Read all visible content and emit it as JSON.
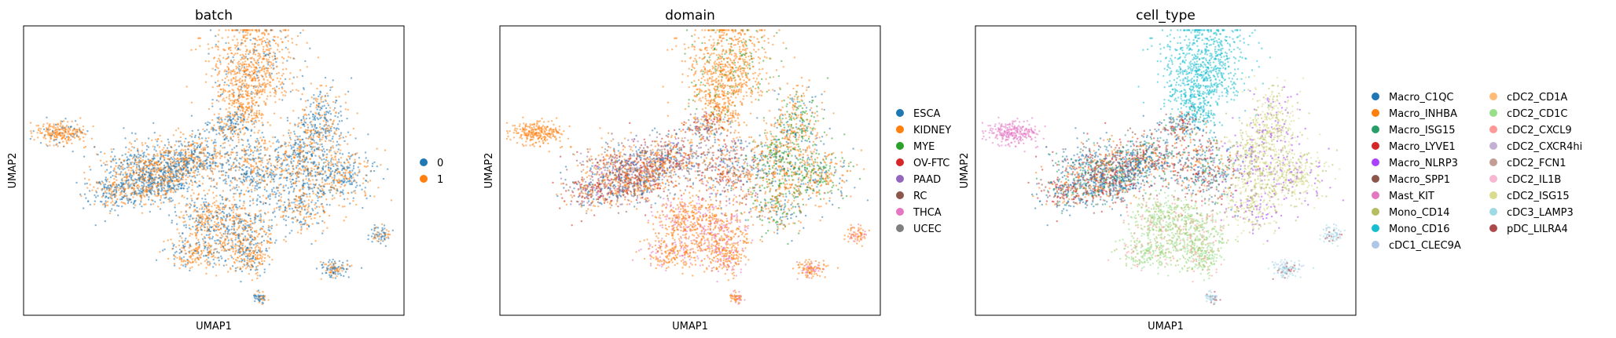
{
  "chart_data": [
    {
      "type": "scatter",
      "title": "batch",
      "xlabel": "UMAP1",
      "ylabel": "UMAP2",
      "grid": false,
      "legend_position": "right",
      "series": [
        {
          "name": "0",
          "color": "#1f77b4"
        },
        {
          "name": "1",
          "color": "#ff7f0e"
        }
      ]
    },
    {
      "type": "scatter",
      "title": "domain",
      "xlabel": "UMAP1",
      "ylabel": "UMAP2",
      "grid": false,
      "legend_position": "right",
      "series": [
        {
          "name": "ESCA",
          "color": "#1f77b4"
        },
        {
          "name": "KIDNEY",
          "color": "#ff7f0e"
        },
        {
          "name": "MYE",
          "color": "#2ca02c"
        },
        {
          "name": "OV-FTC",
          "color": "#d62728"
        },
        {
          "name": "PAAD",
          "color": "#9467bd"
        },
        {
          "name": "RC",
          "color": "#8c564b"
        },
        {
          "name": "THCA",
          "color": "#e377c2"
        },
        {
          "name": "UCEC",
          "color": "#7f7f7f"
        }
      ]
    },
    {
      "type": "scatter",
      "title": "cell_type",
      "xlabel": "UMAP1",
      "ylabel": "UMAP2",
      "grid": false,
      "legend_position": "right",
      "series": [
        {
          "name": "Macro_C1QC",
          "color": "#1f77b4"
        },
        {
          "name": "Macro_INHBA",
          "color": "#ff7f0e"
        },
        {
          "name": "Macro_ISG15",
          "color": "#279e68"
        },
        {
          "name": "Macro_LYVE1",
          "color": "#d62728"
        },
        {
          "name": "Macro_NLRP3",
          "color": "#aa40fc"
        },
        {
          "name": "Macro_SPP1",
          "color": "#8c564b"
        },
        {
          "name": "Mast_KIT",
          "color": "#e377c2"
        },
        {
          "name": "Mono_CD14",
          "color": "#b5bd61"
        },
        {
          "name": "Mono_CD16",
          "color": "#17becf"
        },
        {
          "name": "cDC1_CLEC9A",
          "color": "#aec7e8"
        },
        {
          "name": "cDC2_CD1A",
          "color": "#ffbb78"
        },
        {
          "name": "cDC2_CD1C",
          "color": "#98df8a"
        },
        {
          "name": "cDC2_CXCL9",
          "color": "#ff9896"
        },
        {
          "name": "cDC2_CXCR4hi",
          "color": "#c5b0d5"
        },
        {
          "name": "cDC2_FCN1",
          "color": "#c49c94"
        },
        {
          "name": "cDC2_IL1B",
          "color": "#f7b6d2"
        },
        {
          "name": "cDC2_ISG15",
          "color": "#dbdb8d"
        },
        {
          "name": "cDC3_LAMP3",
          "color": "#9edae5"
        },
        {
          "name": "pDC_LILRA4",
          "color": "#ad494a"
        }
      ]
    }
  ]
}
